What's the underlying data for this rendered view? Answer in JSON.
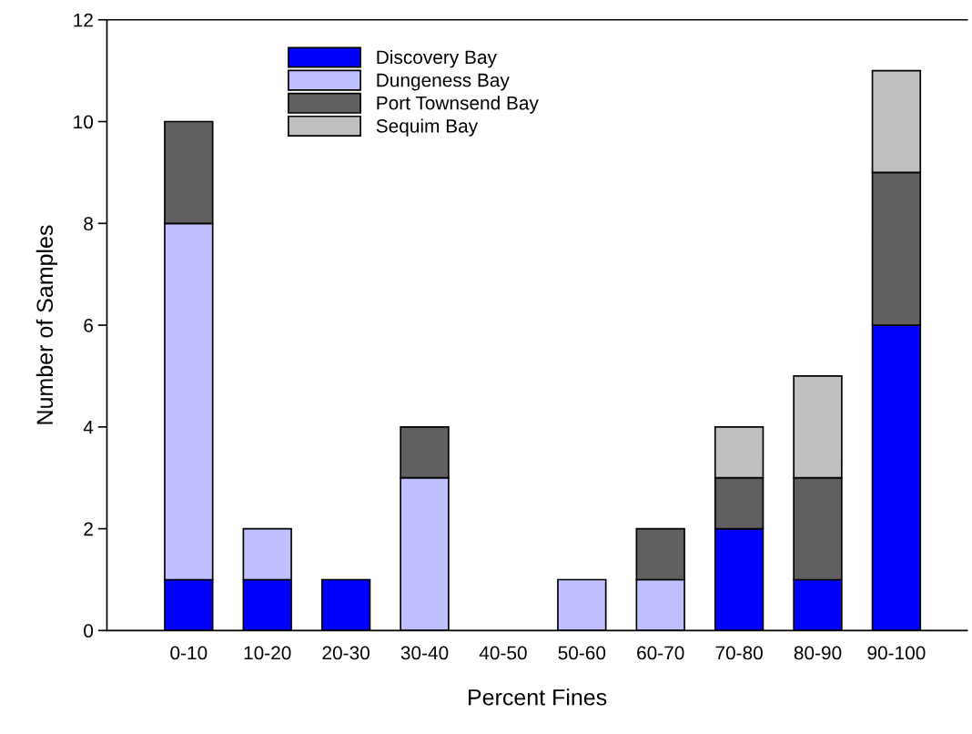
{
  "chart_data": {
    "type": "bar",
    "stacked": true,
    "xlabel": "Percent Fines",
    "ylabel": "Number of Samples",
    "categories": [
      "0-10",
      "10-20",
      "20-30",
      "30-40",
      "40-50",
      "50-60",
      "60-70",
      "70-80",
      "80-90",
      "90-100"
    ],
    "series": [
      {
        "name": "Discovery Bay",
        "color": "#0000ff",
        "values": [
          1,
          1,
          1,
          0,
          0,
          0,
          0,
          2,
          1,
          6
        ]
      },
      {
        "name": "Dungeness Bay",
        "color": "#c0c0ff",
        "values": [
          7,
          1,
          0,
          3,
          0,
          1,
          1,
          0,
          0,
          0
        ]
      },
      {
        "name": "Port Townsend Bay",
        "color": "#606060",
        "values": [
          2,
          0,
          0,
          1,
          0,
          0,
          1,
          1,
          2,
          3
        ]
      },
      {
        "name": "Sequim Bay",
        "color": "#c0c0c0",
        "values": [
          0,
          0,
          0,
          0,
          0,
          0,
          0,
          1,
          2,
          2
        ]
      }
    ],
    "ylim": [
      0,
      12
    ],
    "yticks": [
      0,
      2,
      4,
      6,
      8,
      10,
      12
    ],
    "grid": false,
    "legend": "top left"
  }
}
